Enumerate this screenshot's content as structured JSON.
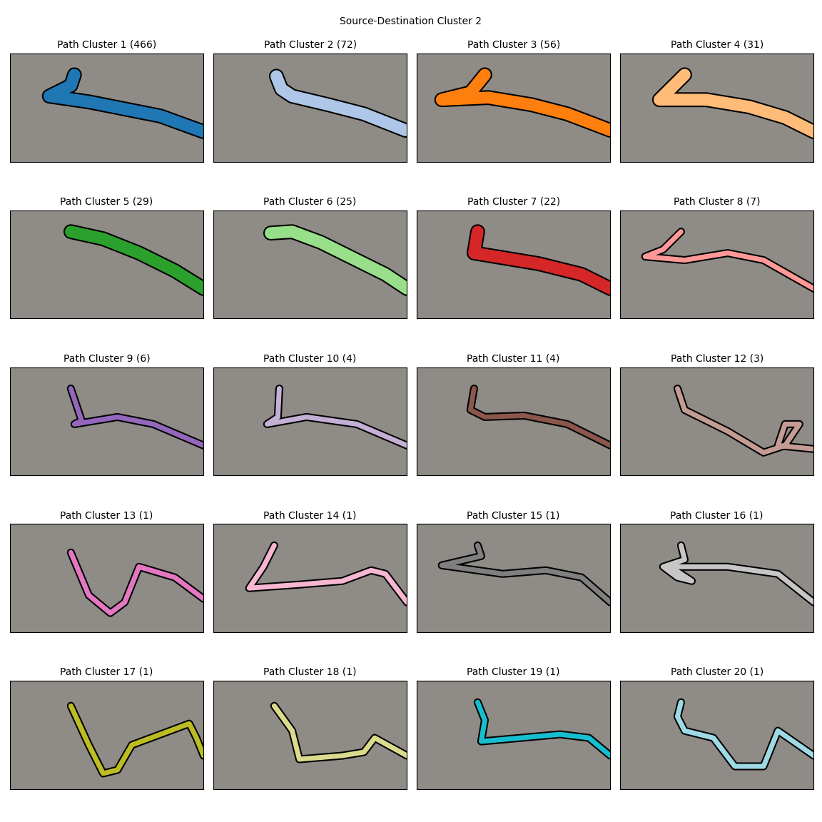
{
  "title": "Source-Destination Cluster 2",
  "chart_data": [
    {
      "type": "line",
      "title": "Path Cluster 1 (466)",
      "color": "#1f77b4",
      "xlim": [
        0,
        270
      ],
      "ylim": [
        152,
        0
      ],
      "tick_labels": false,
      "x": [
        90,
        85,
        55,
        110,
        160,
        210,
        270
      ],
      "values": [
        30,
        45,
        60,
        68,
        78,
        88,
        110
      ]
    },
    {
      "type": "line",
      "title": "Path Cluster 2 (72)",
      "color": "#aec7e8",
      "xlim": [
        0,
        270
      ],
      "ylim": [
        152,
        0
      ],
      "tick_labels": false,
      "x": [
        88,
        95,
        110,
        160,
        210,
        268
      ],
      "values": [
        32,
        50,
        60,
        72,
        85,
        108
      ]
    },
    {
      "type": "line",
      "title": "Path Cluster 3 (56)",
      "color": "#ff7f0e",
      "xlim": [
        0,
        270
      ],
      "ylim": [
        152,
        0
      ],
      "tick_labels": false,
      "x": [
        95,
        75,
        35,
        100,
        160,
        210,
        270
      ],
      "values": [
        30,
        55,
        65,
        62,
        72,
        85,
        108
      ]
    },
    {
      "type": "line",
      "title": "Path Cluster 4 (31)",
      "color": "#ffbb78",
      "xlim": [
        0,
        270
      ],
      "ylim": [
        152,
        0
      ],
      "tick_labels": false,
      "x": [
        90,
        70,
        55,
        120,
        180,
        230,
        270
      ],
      "values": [
        30,
        50,
        65,
        65,
        75,
        90,
        110
      ]
    },
    {
      "type": "line",
      "title": "Path Cluster 5 (29)",
      "color": "#2ca02c",
      "xlim": [
        0,
        270
      ],
      "ylim": [
        152,
        0
      ],
      "tick_labels": false,
      "x": [
        85,
        130,
        180,
        230,
        270
      ],
      "values": [
        30,
        40,
        60,
        85,
        110
      ]
    },
    {
      "type": "line",
      "title": "Path Cluster 6 (25)",
      "color": "#98df8a",
      "xlim": [
        0,
        270
      ],
      "ylim": [
        152,
        0
      ],
      "tick_labels": false,
      "x": [
        80,
        110,
        150,
        200,
        240,
        270
      ],
      "values": [
        32,
        30,
        45,
        70,
        90,
        110
      ]
    },
    {
      "type": "line",
      "title": "Path Cluster 7 (22)",
      "color": "#d62728",
      "xlim": [
        0,
        270
      ],
      "ylim": [
        152,
        0
      ],
      "tick_labels": false,
      "x": [
        85,
        80,
        110,
        170,
        230,
        270
      ],
      "values": [
        30,
        60,
        65,
        75,
        90,
        110
      ]
    },
    {
      "type": "line",
      "title": "Path Cluster 8 (7)",
      "color": "#ff9896",
      "xlim": [
        0,
        270
      ],
      "ylim": [
        152,
        0
      ],
      "tick_labels": false,
      "x": [
        85,
        60,
        35,
        90,
        150,
        200,
        270
      ],
      "values": [
        30,
        55,
        65,
        70,
        60,
        70,
        110
      ]
    },
    {
      "type": "line",
      "title": "Path Cluster 9 (6)",
      "color": "#9467bd",
      "xlim": [
        0,
        270
      ],
      "ylim": [
        152,
        0
      ],
      "tick_labels": false,
      "x": [
        85,
        100,
        90,
        150,
        200,
        270
      ],
      "values": [
        30,
        75,
        80,
        70,
        80,
        110
      ]
    },
    {
      "type": "line",
      "title": "Path Cluster 10 (4)",
      "color": "#c5b0d5",
      "xlim": [
        0,
        270
      ],
      "ylim": [
        152,
        0
      ],
      "tick_labels": false,
      "x": [
        92,
        90,
        75,
        130,
        200,
        270
      ],
      "values": [
        30,
        70,
        80,
        70,
        80,
        110
      ]
    },
    {
      "type": "line",
      "title": "Path Cluster 11 (4)",
      "color": "#8c564b",
      "xlim": [
        0,
        270
      ],
      "ylim": [
        152,
        0
      ],
      "tick_labels": false,
      "x": [
        80,
        75,
        95,
        150,
        210,
        270
      ],
      "values": [
        30,
        60,
        70,
        68,
        80,
        110
      ]
    },
    {
      "type": "line",
      "title": "Path Cluster 12 (3)",
      "color": "#c49c94",
      "xlim": [
        0,
        270
      ],
      "ylim": [
        152,
        0
      ],
      "tick_labels": false,
      "x": [
        80,
        90,
        150,
        200,
        230,
        250,
        230,
        220,
        270
      ],
      "values": [
        30,
        60,
        90,
        120,
        110,
        80,
        80,
        110,
        115
      ]
    },
    {
      "type": "line",
      "title": "Path Cluster 13 (1)",
      "color": "#e377c2",
      "xlim": [
        0,
        270
      ],
      "ylim": [
        152,
        0
      ],
      "tick_labels": false,
      "x": [
        85,
        110,
        140,
        160,
        180,
        230,
        270
      ],
      "values": [
        40,
        100,
        125,
        110,
        60,
        75,
        105
      ]
    },
    {
      "type": "line",
      "title": "Path Cluster 14 (1)",
      "color": "#f7b6d2",
      "xlim": [
        0,
        270
      ],
      "ylim": [
        152,
        0
      ],
      "tick_labels": false,
      "x": [
        85,
        70,
        50,
        120,
        180,
        220,
        240,
        270
      ],
      "values": [
        30,
        60,
        90,
        85,
        80,
        65,
        70,
        110
      ]
    },
    {
      "type": "line",
      "title": "Path Cluster 15 (1)",
      "color": "#7f7f7f",
      "xlim": [
        0,
        270
      ],
      "ylim": [
        152,
        0
      ],
      "tick_labels": false,
      "x": [
        85,
        90,
        35,
        120,
        180,
        230,
        270
      ],
      "values": [
        30,
        45,
        58,
        70,
        65,
        75,
        110
      ]
    },
    {
      "type": "line",
      "title": "Path Cluster 16 (1)",
      "color": "#c7c7c7",
      "xlim": [
        0,
        270
      ],
      "ylim": [
        152,
        0
      ],
      "tick_labels": false,
      "x": [
        85,
        90,
        60,
        80,
        100,
        70,
        150,
        220,
        270
      ],
      "values": [
        30,
        50,
        60,
        75,
        80,
        60,
        60,
        70,
        110
      ]
    },
    {
      "type": "line",
      "title": "Path Cluster 17 (1)",
      "color": "#bcbd22",
      "xlim": [
        0,
        270
      ],
      "ylim": [
        152,
        0
      ],
      "tick_labels": false,
      "x": [
        85,
        110,
        130,
        150,
        170,
        250,
        260,
        270
      ],
      "values": [
        35,
        90,
        130,
        125,
        90,
        60,
        80,
        105
      ]
    },
    {
      "type": "line",
      "title": "Path Cluster 18 (1)",
      "color": "#dbdb8d",
      "xlim": [
        0,
        270
      ],
      "ylim": [
        152,
        0
      ],
      "tick_labels": false,
      "x": [
        85,
        110,
        120,
        180,
        210,
        225,
        270
      ],
      "values": [
        35,
        70,
        110,
        105,
        100,
        80,
        105
      ]
    },
    {
      "type": "line",
      "title": "Path Cluster 19 (1)",
      "color": "#17becf",
      "xlim": [
        0,
        270
      ],
      "ylim": [
        152,
        0
      ],
      "tick_labels": false,
      "x": [
        85,
        95,
        90,
        200,
        240,
        270
      ],
      "values": [
        30,
        55,
        85,
        75,
        80,
        105
      ]
    },
    {
      "type": "line",
      "title": "Path Cluster 20 (1)",
      "color": "#9edae5",
      "xlim": [
        0,
        270
      ],
      "ylim": [
        152,
        0
      ],
      "tick_labels": false,
      "x": [
        85,
        80,
        90,
        130,
        160,
        200,
        220,
        270
      ],
      "values": [
        30,
        50,
        70,
        80,
        120,
        120,
        70,
        105
      ]
    }
  ]
}
